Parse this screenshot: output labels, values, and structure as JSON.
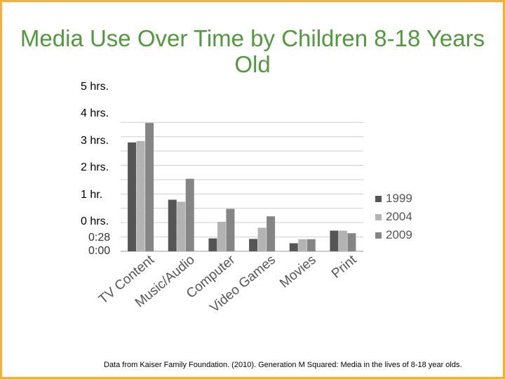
{
  "slide": {
    "title": "Media Use Over Time by Children 8-18 Years Old",
    "source": "Data from Kaiser Family Foundation. (2010). Generation M Squared: Media in the lives of 8-18 year olds.",
    "y_labels": [
      "5 hrs.",
      "4 hrs.",
      "3 hrs.",
      "2 hrs.",
      "1 hr.",
      "0 hrs."
    ],
    "axis_ticks": [
      "0:28",
      "0:00"
    ]
  },
  "colors": {
    "border": "#f4b135",
    "title": "#4f9a3a",
    "grid": "#cfcfcf",
    "1999": "#555555",
    "2004": "#b3b3b3",
    "2009": "#858585"
  },
  "chart_data": {
    "type": "bar",
    "title": "Media Use Over Time by Children 8-18 Years Old",
    "unit": "hours",
    "categories": [
      "TV Content",
      "Music/Audio",
      "Computer",
      "Video Games",
      "Movies",
      "Print"
    ],
    "series": [
      {
        "name": "1999",
        "values": [
          3.8,
          1.8,
          0.45,
          0.43,
          0.28,
          0.72
        ]
      },
      {
        "name": "2004",
        "values": [
          3.85,
          1.73,
          1.03,
          0.82,
          0.42,
          0.72
        ]
      },
      {
        "name": "2009",
        "values": [
          4.48,
          2.53,
          1.48,
          1.22,
          0.42,
          0.63
        ]
      }
    ],
    "ylim": [
      0,
      5
    ],
    "grid": true,
    "legend": "right"
  }
}
